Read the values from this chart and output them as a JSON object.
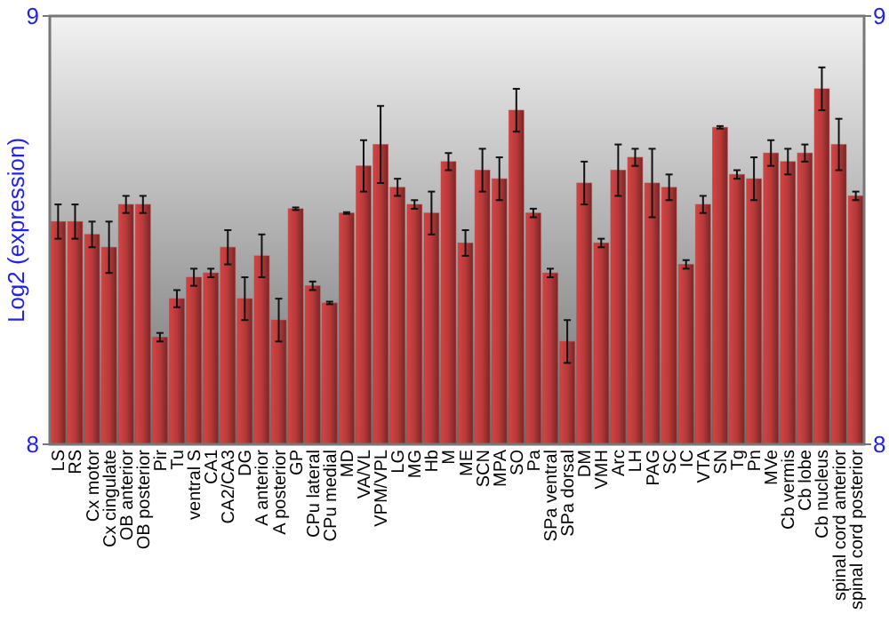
{
  "chart_data": {
    "type": "bar",
    "ylabel": "Log2 (expression)",
    "categories": [
      "LS",
      "RS",
      "Cx motor",
      "Cx cingulate",
      "OB anterior",
      "OB posterior",
      "Pir",
      "Tu",
      "ventral S",
      "CA1",
      "CA2/CA3",
      "DG",
      "A anterior",
      "A posterior",
      "GP",
      "CPu lateral",
      "CPu medial",
      "MD",
      "VA/VL",
      "VPM/VPL",
      "LG",
      "MG",
      "Hb",
      "M",
      "ME",
      "SCN",
      "MPA",
      "SO",
      "Pa",
      "SPa ventral",
      "SPa dorsal",
      "DM",
      "VMH",
      "Arc",
      "LH",
      "PAG",
      "SC",
      "IC",
      "VTA",
      "SN",
      "Tg",
      "Pn",
      "MVe",
      "Cb vermis",
      "Cb lobe",
      "Cb nucleus",
      "spinal cord anterior",
      "spinal cord posterior"
    ],
    "values": [
      8.52,
      8.52,
      8.49,
      8.46,
      8.56,
      8.56,
      8.25,
      8.34,
      8.39,
      8.4,
      8.46,
      8.34,
      8.44,
      8.29,
      8.55,
      8.37,
      8.33,
      8.54,
      8.65,
      8.7,
      8.6,
      8.56,
      8.54,
      8.66,
      8.47,
      8.64,
      8.62,
      8.78,
      8.54,
      8.4,
      8.24,
      8.61,
      8.47,
      8.64,
      8.67,
      8.61,
      8.6,
      8.42,
      8.56,
      8.74,
      8.63,
      8.62,
      8.68,
      8.66,
      8.68,
      8.83,
      8.7,
      8.58
    ],
    "errors": [
      0.04,
      0.04,
      0.03,
      0.06,
      0.02,
      0.02,
      0.01,
      0.02,
      0.02,
      0.01,
      0.04,
      0.05,
      0.05,
      0.05,
      0.003,
      0.01,
      0.003,
      0.002,
      0.06,
      0.09,
      0.02,
      0.01,
      0.05,
      0.02,
      0.03,
      0.05,
      0.05,
      0.05,
      0.01,
      0.01,
      0.05,
      0.05,
      0.01,
      0.06,
      0.02,
      0.08,
      0.03,
      0.01,
      0.02,
      0.003,
      0.01,
      0.05,
      0.03,
      0.03,
      0.02,
      0.05,
      0.06,
      0.01
    ],
    "color": "#b83a3a",
    "ylim": [
      8,
      9
    ],
    "yticks": [
      8,
      9
    ],
    "y2lim": [
      8,
      9
    ],
    "y2ticks": [
      8,
      9
    ]
  }
}
